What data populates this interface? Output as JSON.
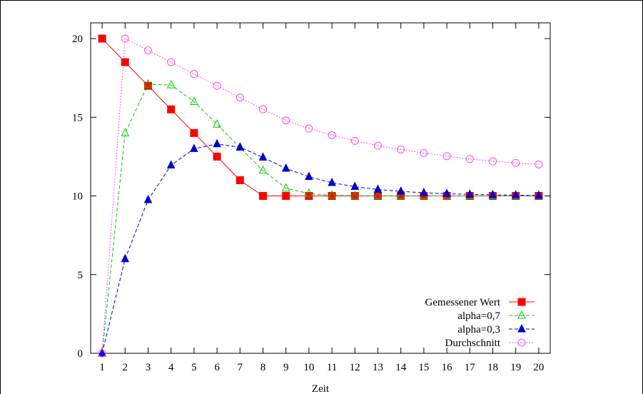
{
  "chart_data": {
    "type": "line",
    "title": "",
    "xlabel": "Zeit",
    "ylabel": "",
    "x": [
      1,
      2,
      3,
      4,
      5,
      6,
      7,
      8,
      9,
      10,
      11,
      12,
      13,
      14,
      15,
      16,
      17,
      18,
      19,
      20
    ],
    "xlim": [
      0.5,
      20.5
    ],
    "ylim": [
      0,
      21
    ],
    "xticks": [
      1,
      2,
      3,
      4,
      5,
      6,
      7,
      8,
      9,
      10,
      11,
      12,
      13,
      14,
      15,
      16,
      17,
      18,
      19,
      20
    ],
    "yticks": [
      0,
      5,
      10,
      15,
      20
    ],
    "grid": false,
    "legend_position": "bottom-right",
    "series": [
      {
        "name": "Gemessener Wert",
        "color": "#ff0000",
        "marker": "filled-square",
        "line": "solid",
        "values": [
          20,
          18.5,
          17,
          15.5,
          14,
          12.5,
          11,
          10,
          10,
          10,
          10,
          10,
          10,
          10,
          10,
          10,
          10,
          10,
          10,
          10
        ]
      },
      {
        "name": "alpha=0,7",
        "color": "#00cc00",
        "marker": "open-triangle",
        "line": "dashed",
        "values": [
          0,
          14,
          17.1,
          17.05,
          15.99,
          14.55,
          13.07,
          11.62,
          10.49,
          10.15,
          10.04,
          10.01,
          10,
          10,
          10,
          10,
          10,
          10,
          10,
          10
        ]
      },
      {
        "name": "alpha=0,3",
        "color": "#0000cc",
        "marker": "filled-triangle",
        "line": "dashed",
        "values": [
          0,
          6,
          9.75,
          11.95,
          13.0,
          13.3,
          13.1,
          12.45,
          11.75,
          11.22,
          10.84,
          10.59,
          10.41,
          10.29,
          10.2,
          10.14,
          10.1,
          10.07,
          10.05,
          10.03
        ]
      },
      {
        "name": "Durchschnitt",
        "color": "#ff44ff",
        "marker": "open-circle",
        "line": "dotted",
        "values": [
          0,
          20,
          19.25,
          18.5,
          17.75,
          17.0,
          16.25,
          15.5,
          14.8,
          14.28,
          13.86,
          13.5,
          13.2,
          12.95,
          12.73,
          12.53,
          12.35,
          12.2,
          12.1,
          12.0
        ]
      }
    ]
  }
}
